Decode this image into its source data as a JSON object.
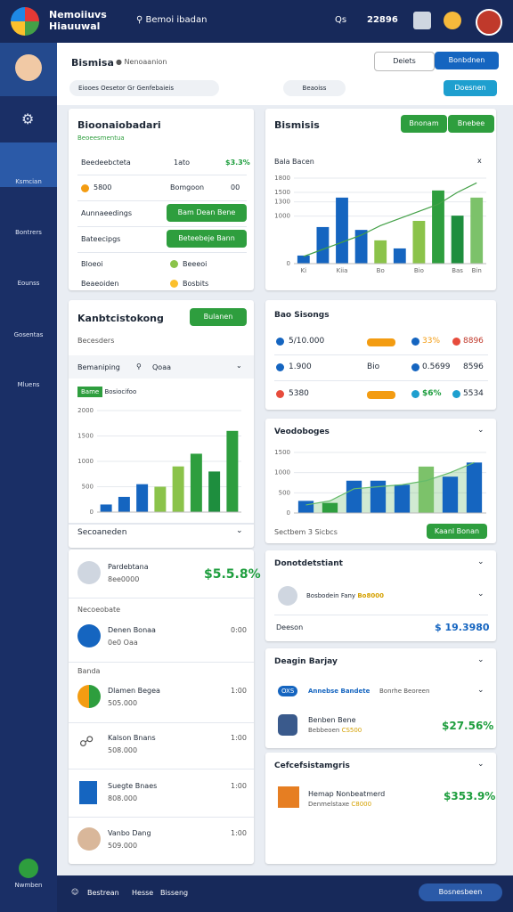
{
  "header": {
    "title": [
      "Nemoiiuvs",
      "Hiauuwal"
    ],
    "search": "Bemoi ibadan",
    "user": "Qs",
    "amount": "22896"
  },
  "sidebar": {
    "items": [
      "Ksmcian",
      "Bontrers",
      "Eounss",
      "Gosentas",
      "Mluens"
    ],
    "bottom": "Nwmben"
  },
  "toolbar": {
    "title": "Bismisa",
    "subtitle": "Nenoaanion",
    "buttons": [
      "Deiets",
      "Bonbdnen"
    ],
    "filter": "Eiooes  Oesetor Gr Genfebaieis",
    "pill": "Beaoiss",
    "action": "Doesnen"
  },
  "summary": {
    "title": "Bioonaiobadari",
    "subtitle": "Beoeesmentua",
    "rows": [
      [
        "Beedeebcteta",
        "1ato",
        "$3.3%"
      ],
      [
        "5800",
        "Bomgoon",
        "00"
      ],
      [
        "Aunnaeedings",
        "Bam Dean Bene"
      ],
      [
        "Bateecipgs",
        "Beteebeje Bann"
      ],
      [
        "Bloeoi",
        "Beeeoi"
      ],
      [
        "Beaeoiden",
        "Bosbits"
      ]
    ]
  },
  "business": {
    "title": "Bismisis",
    "buttons": [
      "Bnonam",
      "Bnebee"
    ],
    "chart_title": "Bala Bacen",
    "close": "x"
  },
  "tracking": {
    "title": "Kanbtcistokong",
    "button": "Bulanen",
    "subtitle": "Becesders",
    "filter": [
      "Bemaniping",
      "Qoaa"
    ],
    "chip": "Bame",
    "chip_label": "Bosiocifoo",
    "footer": "Secoaneden"
  },
  "stats": {
    "title": "Bao Sisongs",
    "rows": [
      [
        "5/10.000",
        "33%",
        "8896"
      ],
      [
        "1.900",
        "Bio",
        "0.5699",
        "8596"
      ],
      [
        "5380",
        "$6%",
        "5534"
      ]
    ]
  },
  "overview": {
    "title": "Veodoboges",
    "footer": [
      "Sectbem",
      "3",
      "Sicbcs"
    ],
    "button": "Kaanl Bonan"
  },
  "list": {
    "items": [
      {
        "name": "Pardebtana",
        "sub": "8ee0000",
        "value": "$5.5.8%"
      }
    ],
    "section1": "Necoeobate",
    "items2": [
      {
        "name": "Denen Bonaa",
        "sub": "0e0 Oaa",
        "time": "0:00"
      }
    ],
    "section2": "Banda",
    "items3": [
      {
        "name": "Dlamen Begea",
        "sub": "505.000",
        "time": "1:00"
      },
      {
        "name": "Kalson Bnans",
        "sub": "508.000",
        "time": "1:00"
      },
      {
        "name": "Suegte Bnaes",
        "sub": "808.000",
        "time": "1:00"
      },
      {
        "name": "Vanbo Dang",
        "sub": "509.000",
        "time": "1:00"
      }
    ]
  },
  "detail": {
    "title": "Donotdetstiant",
    "row1": [
      "Bosbodein Fany",
      "Bo8000"
    ],
    "row2": [
      "Deeson",
      "$ 19.3980"
    ]
  },
  "design": {
    "title": "Deagin Barjay",
    "chip": "OXS",
    "link": "Annebse Bandete",
    "note": "Bonrhe Beoreen",
    "item": "Benben Bene",
    "item_sub": "Bebbeoen",
    "item_code": "CS500",
    "value": "$27.56%"
  },
  "certs": {
    "title": "Cefcefsistamgris",
    "item": "Hemap Nonbeatmerd",
    "item_sub": "Denmelstaxe",
    "item_code": "C8000",
    "value": "$353.9%"
  },
  "footer": {
    "links": [
      "Bestrean",
      "Hesse",
      "Bisseng"
    ],
    "button": "Bosnesbeen"
  },
  "charts": [
    {
      "type": "bar",
      "ylim": [
        0,
        1800
      ],
      "yticks": [
        0,
        1000,
        1300,
        1500,
        1800
      ],
      "categories": [
        "Ki",
        null,
        "Kiia",
        null,
        "Bo",
        null,
        "Bio",
        null,
        "Bas",
        "Bin"
      ],
      "values": [
        170,
        770,
        1390,
        710,
        490,
        320,
        900,
        1540,
        1010,
        1390
      ],
      "colors": [
        "#1565c0",
        "#1565c0",
        "#1565c0",
        "#1565c0",
        "#8bc34a",
        "#1565c0",
        "#8bc34a",
        "#2e9e3e",
        "#1e8e3e",
        "#7cc26a"
      ],
      "line": [
        150,
        300,
        450,
        600,
        800,
        950,
        1100,
        1250,
        1500,
        1700
      ],
      "line_color": "#43a047"
    },
    {
      "type": "bar",
      "ylim": [
        0,
        2000
      ],
      "yticks": [
        0,
        500,
        1000,
        1500,
        2000
      ],
      "values": [
        150,
        300,
        550,
        500,
        900,
        1150,
        800,
        1600
      ],
      "colors": [
        "#1565c0",
        "#1565c0",
        "#1565c0",
        "#8bc34a",
        "#8bc34a",
        "#2e9e3e",
        "#1e8e3e",
        "#2e9e3e"
      ]
    },
    {
      "type": "bar",
      "ylim": [
        0,
        1500
      ],
      "yticks": [
        0,
        500,
        1000,
        1500
      ],
      "values": [
        300,
        250,
        800,
        800,
        700,
        1150,
        900,
        1250
      ],
      "colors": [
        "#1565c0",
        "#2e9e3e",
        "#1565c0",
        "#1565c0",
        "#1565c0",
        "#7cc26a",
        "#1565c0",
        "#1565c0"
      ],
      "line": [
        200,
        300,
        600,
        650,
        700,
        800,
        1000,
        1250
      ],
      "line_color": "#66bb6a",
      "area": true
    }
  ]
}
